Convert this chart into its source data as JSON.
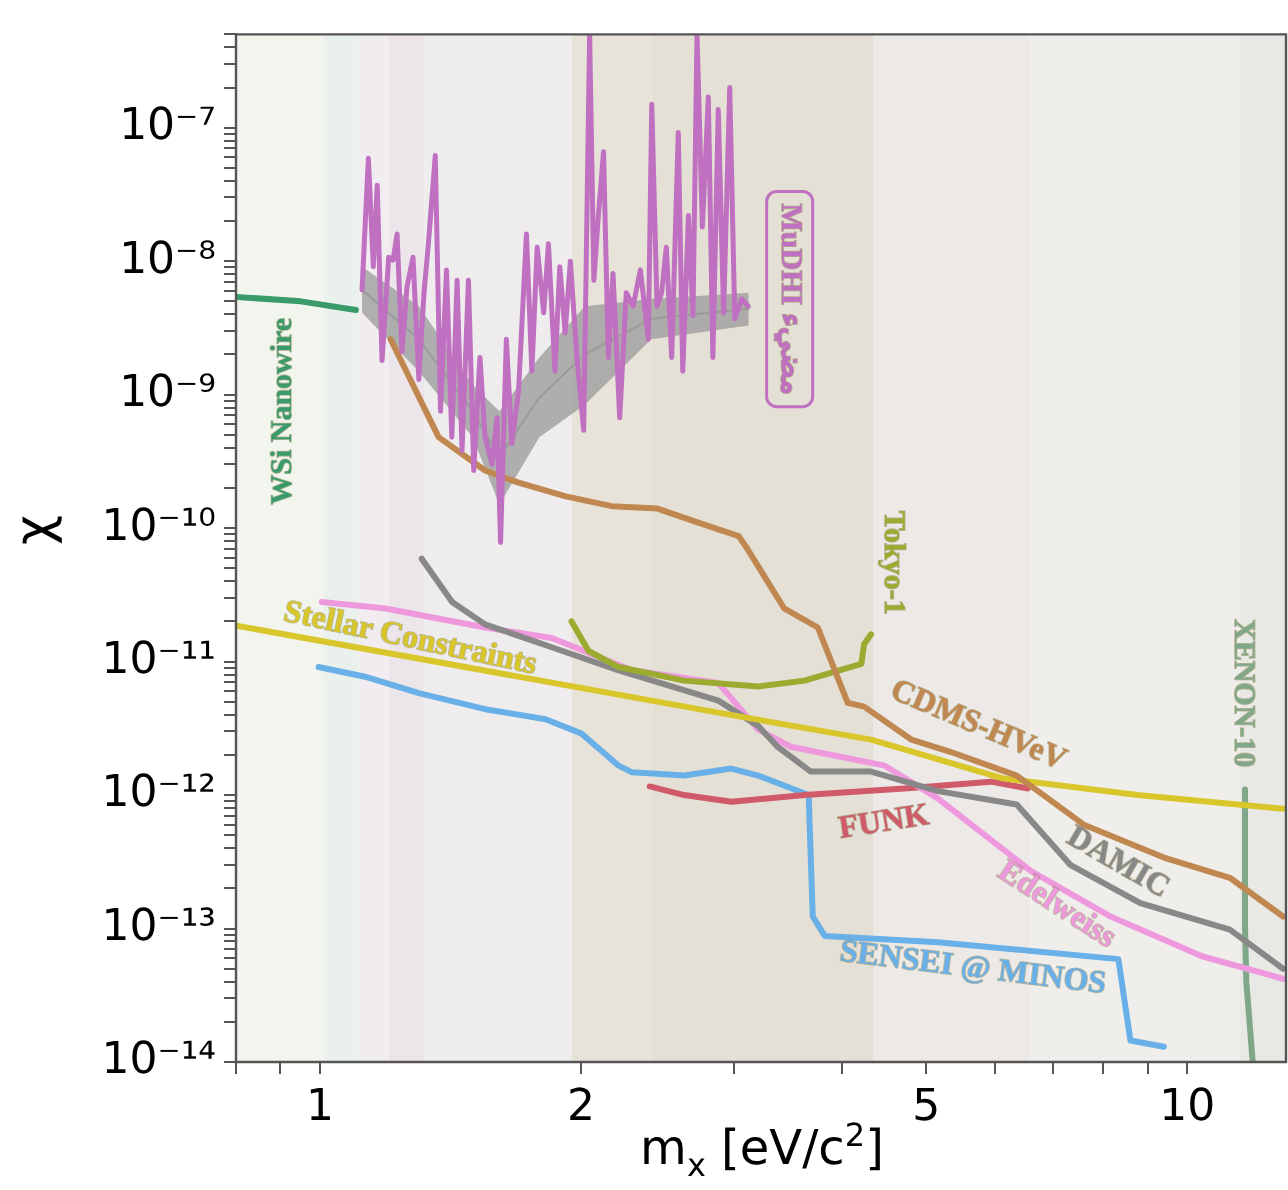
{
  "chart_data": {
    "type": "line",
    "xlabel": "m$_{x}$ [eV/c$^{2}$]",
    "ylabel": "χ",
    "log": "xy",
    "legend": false,
    "grid": false,
    "marker": "none",
    "xlim": [
      0.8,
      13
    ],
    "ylim": [
      1e-14,
      5e-07
    ],
    "xticks": [
      {
        "value": 0.8,
        "label": null
      },
      {
        "value": 0.9,
        "label": null
      },
      1,
      2,
      {
        "value": 3,
        "label": null
      },
      {
        "value": 4,
        "label": null
      },
      5,
      {
        "value": 6,
        "label": null
      },
      {
        "value": 7,
        "label": null
      },
      {
        "value": 8,
        "label": null
      },
      {
        "value": 9,
        "label": null
      },
      10
    ],
    "yticks": [
      {
        "value": 1e-14,
        "label": "10⁻¹⁴"
      },
      {
        "value": 2e-14,
        "label": null
      },
      {
        "value": 3e-14,
        "label": null
      },
      {
        "value": 4e-14,
        "label": null
      },
      {
        "value": 5e-14,
        "label": null
      },
      {
        "value": 6e-14,
        "label": null
      },
      {
        "value": 7e-14,
        "label": null
      },
      {
        "value": 8e-14,
        "label": null
      },
      {
        "value": 9e-14,
        "label": null
      },
      {
        "value": 1e-13,
        "label": "10⁻¹³"
      },
      {
        "value": 2e-13,
        "label": null
      },
      {
        "value": 3e-13,
        "label": null
      },
      {
        "value": 4e-13,
        "label": null
      },
      {
        "value": 5e-13,
        "label": null
      },
      {
        "value": 6e-13,
        "label": null
      },
      {
        "value": 7e-13,
        "label": null
      },
      {
        "value": 8e-13,
        "label": null
      },
      {
        "value": 9e-13,
        "label": null
      },
      {
        "value": 1e-12,
        "label": "10⁻¹²"
      },
      {
        "value": 2e-12,
        "label": null
      },
      {
        "value": 3e-12,
        "label": null
      },
      {
        "value": 4e-12,
        "label": null
      },
      {
        "value": 5e-12,
        "label": null
      },
      {
        "value": 6e-12,
        "label": null
      },
      {
        "value": 7e-12,
        "label": null
      },
      {
        "value": 8e-12,
        "label": null
      },
      {
        "value": 9e-12,
        "label": null
      },
      {
        "value": 1e-11,
        "label": "10⁻¹¹"
      },
      {
        "value": 2e-11,
        "label": null
      },
      {
        "value": 3e-11,
        "label": null
      },
      {
        "value": 4e-11,
        "label": null
      },
      {
        "value": 5e-11,
        "label": null
      },
      {
        "value": 6e-11,
        "label": null
      },
      {
        "value": 7e-11,
        "label": null
      },
      {
        "value": 8e-11,
        "label": null
      },
      {
        "value": 9e-11,
        "label": null
      },
      {
        "value": 1e-10,
        "label": "10⁻¹⁰"
      },
      {
        "value": 2e-10,
        "label": null
      },
      {
        "value": 3e-10,
        "label": null
      },
      {
        "value": 4e-10,
        "label": null
      },
      {
        "value": 5e-10,
        "label": null
      },
      {
        "value": 6e-10,
        "label": null
      },
      {
        "value": 7e-10,
        "label": null
      },
      {
        "value": 8e-10,
        "label": null
      },
      {
        "value": 9e-10,
        "label": null
      },
      {
        "value": 1e-09,
        "label": "10⁻⁹"
      },
      {
        "value": 2e-09,
        "label": null
      },
      {
        "value": 3e-09,
        "label": null
      },
      {
        "value": 4e-09,
        "label": null
      },
      {
        "value": 5e-09,
        "label": null
      },
      {
        "value": 6e-09,
        "label": null
      },
      {
        "value": 7e-09,
        "label": null
      },
      {
        "value": 8e-09,
        "label": null
      },
      {
        "value": 9e-09,
        "label": null
      },
      {
        "value": 1e-08,
        "label": "10⁻⁸"
      },
      {
        "value": 2e-08,
        "label": null
      },
      {
        "value": 3e-08,
        "label": null
      },
      {
        "value": 4e-08,
        "label": null
      },
      {
        "value": 5e-08,
        "label": null
      },
      {
        "value": 6e-08,
        "label": null
      },
      {
        "value": 7e-08,
        "label": null
      },
      {
        "value": 8e-08,
        "label": null
      },
      {
        "value": 9e-08,
        "label": null
      },
      {
        "value": 1e-07,
        "label": "10⁻⁷"
      },
      {
        "value": 2e-07,
        "label": null
      },
      {
        "value": 3e-07,
        "label": null
      },
      {
        "value": 4e-07,
        "label": null
      },
      {
        "value": 5e-07,
        "label": null
      }
    ],
    "bands": [
      {
        "axis": "x",
        "from": 0.8,
        "to": 1.01,
        "color": "#f2f5ee"
      },
      {
        "axis": "x",
        "from": 1.01,
        "to": 1.11,
        "color": "#eaf0ec"
      },
      {
        "axis": "x",
        "from": 1.11,
        "to": 1.2,
        "color": "#f1ecf0"
      },
      {
        "axis": "x",
        "from": 1.2,
        "to": 1.32,
        "color": "#ece6eb"
      },
      {
        "axis": "x",
        "from": 1.32,
        "to": 1.95,
        "color": "#eeecec"
      },
      {
        "axis": "x",
        "from": 1.95,
        "to": 2.41,
        "color": "#e7e3d9"
      },
      {
        "axis": "x",
        "from": 2.41,
        "to": 4.35,
        "color": "#e4e0d6"
      },
      {
        "axis": "x",
        "from": 4.35,
        "to": 6.6,
        "color": "#ede9e6"
      },
      {
        "axis": "x",
        "from": 6.6,
        "to": 11.5,
        "color": "#efeeeb"
      },
      {
        "axis": "x",
        "from": 11.5,
        "to": 13,
        "color": "#e8e9e4"
      }
    ],
    "series": [
      {
        "name": "WSi Nanowire",
        "color": "#3a9a6a",
        "x": [
          0.8,
          0.95,
          1.1
        ],
        "values": [
          5.4e-09,
          5e-09,
          4.3e-09
        ]
      },
      {
        "name": "MuDHI مضيء",
        "color": "#c070c0",
        "x": [
          1.118,
          1.137,
          1.152,
          1.164,
          1.179,
          1.2,
          1.214,
          1.227,
          1.243,
          1.26,
          1.28,
          1.3,
          1.318,
          1.334,
          1.358,
          1.377,
          1.399,
          1.419,
          1.439,
          1.458,
          1.483,
          1.504,
          1.529,
          1.55,
          1.579,
          1.6,
          1.615,
          1.64,
          1.664,
          1.694,
          1.73,
          1.755,
          1.78,
          1.811,
          1.834,
          1.866,
          1.89,
          1.917,
          1.944,
          1.978,
          2.014,
          2.046,
          2.069,
          2.094,
          2.123,
          2.15,
          2.177,
          2.216,
          2.255,
          2.296,
          2.341,
          2.391,
          2.413,
          2.447,
          2.477,
          2.508,
          2.544,
          2.589,
          2.62,
          2.66,
          2.692,
          2.721,
          2.76,
          2.804,
          2.838,
          2.879,
          2.92,
          2.968,
          3.008,
          3.063,
          3.117
        ],
        "values": [
          6.1e-09,
          5.9e-08,
          9.1e-09,
          3.7e-08,
          1.8e-09,
          1.07e-08,
          1.02e-08,
          1.6e-08,
          2.1e-09,
          6.5e-09,
          1.07e-08,
          1.3e-09,
          5.8e-09,
          1.4e-08,
          6.2e-08,
          7.5e-10,
          8.6e-09,
          4.8e-10,
          7.2e-09,
          3.8e-10,
          7.2e-09,
          2.7e-10,
          1.9e-09,
          4.8e-10,
          3e-10,
          6.7e-10,
          7.8e-11,
          2.6e-09,
          4.3e-10,
          1.06e-09,
          1.6e-08,
          1.5e-09,
          1.27e-08,
          4.1e-09,
          1.35e-08,
          1.5e-09,
          9.1e-09,
          2.9e-09,
          1e-08,
          1.9e-09,
          5.4e-10,
          5e-07,
          7.2e-09,
          2.2e-08,
          6.6e-08,
          1.9e-09,
          8.1e-09,
          6.7e-10,
          5.8e-09,
          4.6e-09,
          8.6e-09,
          2.6e-09,
          1.5e-07,
          4.6e-09,
          5.8e-09,
          1.27e-08,
          1.9e-09,
          9.2e-08,
          1.5e-09,
          2.2e-08,
          3.9e-09,
          5e-07,
          1.8e-08,
          1.7e-07,
          1.9e-09,
          1.37e-07,
          4.1e-09,
          2e-07,
          3.7e-09,
          5.2e-09,
          4.6e-09
        ]
      },
      {
        "color": "#9a9a9a",
        "x": [
          1.118,
          1.3,
          1.5,
          1.61,
          1.79,
          2.02,
          2.41,
          3.12
        ],
        "values": [
          6.1e-09,
          2.6e-09,
          7.5e-10,
          3.4e-10,
          9.5e-10,
          2e-09,
          3.7e-09,
          4.4e-09
        ],
        "lower": [
          4.1e-09,
          1.5e-09,
          4.8e-10,
          1.5e-10,
          4.8e-10,
          8.4e-10,
          2.6e-09,
          3.3e-09
        ],
        "upper": [
          9.1e-09,
          4.6e-09,
          1.18e-09,
          7.5e-10,
          1.9e-09,
          4.6e-09,
          5.2e-09,
          5.8e-09
        ]
      },
      {
        "name": "CDMS-HVeV",
        "color": "#c08850",
        "x": [
          1.206,
          1.37,
          1.55,
          1.69,
          1.92,
          2.17,
          2.45,
          2.73,
          3.04,
          3.11,
          3.43,
          3.75,
          4.06,
          4.24,
          4.81,
          5.34,
          6.36,
          7.6,
          9.4,
          11.2,
          12.9
        ],
        "values": [
          2.6e-09,
          4.8e-10,
          2.7e-10,
          2.2e-10,
          1.73e-10,
          1.46e-10,
          1.4e-10,
          1.1e-10,
          8.7e-11,
          7e-11,
          2.5e-11,
          1.8e-11,
          4.9e-12,
          4.6e-12,
          2.6e-12,
          2.1e-12,
          1.4e-12,
          6e-13,
          3.4e-13,
          2.4e-13,
          1.23e-13
        ]
      },
      {
        "name": "Tokyo-1",
        "color": "#9aab30",
        "x": [
          1.95,
          2.04,
          2.21,
          2.63,
          3.2,
          3.62,
          4.21,
          4.24,
          4.32
        ],
        "values": [
          2e-11,
          1.2e-11,
          9.1e-12,
          7.2e-12,
          6.5e-12,
          7.2e-12,
          9.6e-12,
          1.35e-11,
          1.6e-11
        ]
      },
      {
        "name": "Stellar Constraints",
        "color": "#d8c62a",
        "x": [
          0.8,
          3.03,
          4.32,
          6.14,
          8.77,
          12.9
        ],
        "values": [
          1.86e-11,
          3.9e-12,
          2.6e-12,
          1.33e-12,
          1e-12,
          7.9e-13
        ]
      },
      {
        "name": "DAMIC",
        "color": "#888888",
        "x": [
          1.31,
          1.42,
          1.55,
          1.85,
          2.21,
          2.88,
          3.2,
          3.37,
          3.68,
          4.32,
          5.16,
          6.36,
          7.33,
          8.83,
          11.2,
          12.9
        ],
        "values": [
          5.9e-11,
          2.8e-11,
          1.9e-11,
          1.28e-11,
          8.6e-12,
          5.1e-12,
          3.3e-12,
          2.3e-12,
          1.5e-12,
          1.5e-12,
          1.07e-12,
          8.5e-13,
          3e-13,
          1.55e-13,
          9.8e-14,
          5e-14
        ]
      },
      {
        "name": "Edelweiss",
        "color": "#ee99dd",
        "x": [
          1.005,
          1.19,
          1.55,
          1.85,
          2.29,
          2.88,
          3.2,
          3.49,
          4.48,
          5.16,
          6.6,
          8.16,
          10.4,
          12.9
        ],
        "values": [
          2.8e-11,
          2.5e-11,
          1.8e-11,
          1.5e-11,
          8.6e-12,
          6.9e-12,
          3.1e-12,
          2.3e-12,
          1.66e-12,
          9.4e-13,
          2.7e-13,
          1.23e-13,
          6.2e-14,
          4.2e-14
        ]
      },
      {
        "name": "FUNK",
        "color": "#d05a6a",
        "x": [
          2.4,
          2.63,
          2.98,
          3.62,
          4.72,
          5.94,
          6.55
        ],
        "values": [
          1.16e-12,
          1e-12,
          8.9e-13,
          1e-12,
          1.12e-12,
          1.26e-12,
          1.12e-12
        ]
      },
      {
        "name": "SENSEI @ MINOS",
        "color": "#6ab0e8",
        "x": [
          0.996,
          1.127,
          1.3,
          1.55,
          1.82,
          2.0,
          2.21,
          2.29,
          2.63,
          2.98,
          3.2,
          3.66,
          3.7,
          3.82,
          5.16,
          8.33,
          8.6,
          9.4
        ],
        "values": [
          9.1e-12,
          7.7e-12,
          5.8e-12,
          4.4e-12,
          3.7e-12,
          2.9e-12,
          1.66e-12,
          1.48e-12,
          1.4e-12,
          1.58e-12,
          1.4e-12,
          1e-12,
          1.23e-13,
          8.8e-14,
          7.9e-14,
          5.9e-14,
          1.45e-14,
          1.3e-14
        ]
      },
      {
        "name": "XENON-10",
        "color": "#80a888",
        "x": [
          11.66,
          11.66,
          11.7,
          11.9
        ],
        "values": [
          1.1e-12,
          1e-13,
          4e-14,
          1e-14
        ]
      }
    ]
  }
}
